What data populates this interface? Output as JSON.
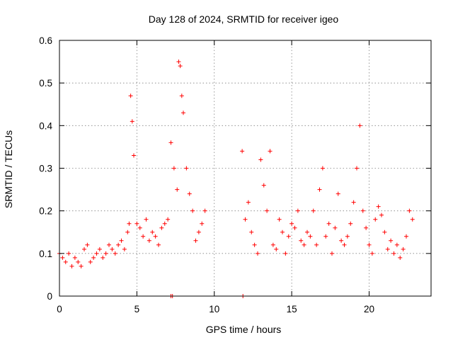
{
  "chart_data": {
    "type": "scatter",
    "title": "Day 128 of 2024, SRMTID for receiver igeo",
    "xlabel": "GPS time / hours",
    "ylabel": "SRMTID / TECUs",
    "xlim": [
      0,
      24
    ],
    "ylim": [
      0,
      0.6
    ],
    "x_ticks": [
      0,
      5,
      10,
      15,
      20
    ],
    "x_tick_labels": [
      "0",
      "5",
      "10",
      "15",
      "20"
    ],
    "y_ticks": [
      0,
      0.1,
      0.2,
      0.3,
      0.4,
      0.5,
      0.6
    ],
    "y_tick_labels": [
      "0",
      "0.1",
      "0.2",
      "0.3",
      "0.4",
      "0.5",
      "0.6"
    ],
    "grid": true,
    "grid_style": "dotted",
    "marker": "+",
    "color": "#ff0000",
    "series": [
      {
        "name": "SRMTID",
        "x": [
          0.0,
          0.2,
          0.4,
          0.6,
          0.8,
          1.0,
          1.2,
          1.4,
          1.6,
          1.8,
          2.0,
          2.2,
          2.4,
          2.6,
          2.8,
          3.0,
          3.2,
          3.4,
          3.6,
          3.8,
          4.0,
          4.2,
          4.4,
          4.5,
          4.6,
          4.7,
          4.8,
          5.0,
          5.2,
          5.4,
          5.6,
          5.8,
          6.0,
          6.2,
          6.4,
          6.6,
          6.8,
          7.0,
          7.2,
          7.4,
          7.6,
          7.7,
          7.8,
          7.9,
          8.0,
          8.2,
          8.4,
          8.6,
          8.8,
          9.0,
          9.2,
          9.4,
          11.8,
          12.0,
          12.2,
          12.4,
          12.6,
          12.8,
          13.0,
          13.2,
          13.4,
          13.6,
          13.8,
          14.0,
          14.2,
          14.4,
          14.6,
          14.8,
          15.0,
          15.2,
          15.4,
          15.6,
          15.8,
          16.0,
          16.2,
          16.4,
          16.6,
          16.8,
          17.0,
          17.2,
          17.4,
          17.6,
          17.8,
          18.0,
          18.2,
          18.4,
          18.6,
          18.8,
          19.0,
          19.2,
          19.4,
          19.6,
          19.8,
          20.0,
          20.2,
          20.4,
          20.6,
          20.8,
          21.0,
          21.2,
          21.4,
          21.6,
          21.8,
          22.0,
          22.2,
          22.4,
          22.6,
          22.8
        ],
        "y": [
          0.1,
          0.09,
          0.08,
          0.1,
          0.07,
          0.09,
          0.08,
          0.07,
          0.11,
          0.12,
          0.08,
          0.09,
          0.1,
          0.11,
          0.09,
          0.1,
          0.12,
          0.11,
          0.1,
          0.12,
          0.13,
          0.11,
          0.15,
          0.17,
          0.47,
          0.41,
          0.33,
          0.17,
          0.16,
          0.14,
          0.18,
          0.13,
          0.15,
          0.14,
          0.12,
          0.16,
          0.17,
          0.18,
          0.36,
          0.3,
          0.25,
          0.55,
          0.54,
          0.47,
          0.43,
          0.3,
          0.24,
          0.2,
          0.13,
          0.15,
          0.17,
          0.2,
          0.34,
          0.18,
          0.22,
          0.15,
          0.12,
          0.1,
          0.32,
          0.26,
          0.2,
          0.34,
          0.12,
          0.11,
          0.18,
          0.15,
          0.1,
          0.14,
          0.17,
          0.16,
          0.2,
          0.13,
          0.12,
          0.15,
          0.14,
          0.2,
          0.12,
          0.25,
          0.3,
          0.14,
          0.17,
          0.1,
          0.16,
          0.24,
          0.13,
          0.12,
          0.14,
          0.17,
          0.22,
          0.3,
          0.4,
          0.2,
          0.16,
          0.12,
          0.1,
          0.18,
          0.21,
          0.19,
          0.15,
          0.11,
          0.13,
          0.1,
          0.12,
          0.09,
          0.11,
          0.14,
          0.2,
          0.18
        ]
      }
    ],
    "outliers": {
      "x": [
        7.2,
        7.3,
        11.85
      ],
      "y": [
        0.0,
        0.0,
        0.0
      ]
    }
  }
}
